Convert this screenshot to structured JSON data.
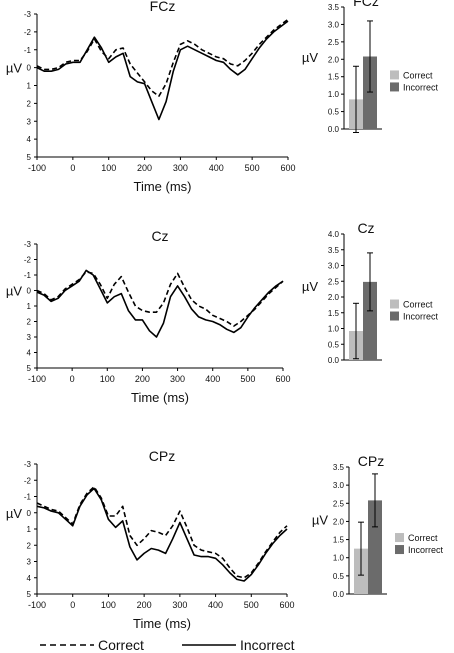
{
  "legend": {
    "correct": "Correct",
    "incorrect": "Incorrect"
  },
  "colors": {
    "correct_bar": "#bdbdbd",
    "incorrect_bar": "#6b6b6b",
    "line": "#000000"
  },
  "chart_data": [
    {
      "type": "line",
      "title": "FCz",
      "xlabel": "Time (ms)",
      "ylabel": "µV",
      "xlim": [
        -100,
        600
      ],
      "ylim": [
        -3,
        5
      ],
      "y_inverted": true,
      "x_ticks": [
        -100,
        0,
        100,
        200,
        300,
        400,
        500,
        600
      ],
      "y_ticks": [
        -3,
        -2,
        -1,
        0,
        1,
        2,
        3,
        4,
        5
      ],
      "x": [
        -100,
        -80,
        -60,
        -40,
        -20,
        0,
        20,
        40,
        60,
        80,
        100,
        120,
        140,
        160,
        180,
        200,
        220,
        240,
        260,
        280,
        300,
        320,
        340,
        360,
        380,
        400,
        420,
        440,
        460,
        480,
        500,
        520,
        540,
        560,
        580,
        600
      ],
      "series": [
        {
          "name": "Correct",
          "style": "dashed",
          "values": [
            -0.1,
            0.1,
            0.1,
            0.0,
            -0.3,
            -0.4,
            -0.4,
            -0.9,
            -1.6,
            -0.9,
            -0.5,
            -1.0,
            -1.1,
            -0.2,
            0.3,
            0.8,
            1.3,
            1.6,
            0.9,
            -0.3,
            -1.3,
            -1.5,
            -1.3,
            -1.0,
            -0.8,
            -0.6,
            -0.5,
            -0.2,
            -0.1,
            -0.4,
            -0.8,
            -1.3,
            -1.7,
            -2.1,
            -2.4,
            -2.7
          ]
        },
        {
          "name": "Incorrect",
          "style": "solid",
          "values": [
            0.0,
            0.2,
            0.2,
            0.1,
            -0.2,
            -0.3,
            -0.3,
            -1.0,
            -1.7,
            -1.1,
            -0.3,
            -0.6,
            -0.8,
            0.5,
            0.8,
            0.9,
            1.9,
            2.9,
            1.9,
            0.2,
            -1.0,
            -1.2,
            -1.0,
            -0.8,
            -0.6,
            -0.4,
            -0.3,
            0.1,
            0.4,
            0.1,
            -0.5,
            -1.1,
            -1.6,
            -2.0,
            -2.3,
            -2.6
          ]
        }
      ]
    },
    {
      "type": "bar",
      "title": "FCz",
      "ylabel": "µV",
      "ylim": [
        0,
        3.5
      ],
      "y_ticks": [
        "0.0",
        "0.5",
        "1.0",
        "1.5",
        "2.0",
        "2.5",
        "3.0",
        "3.5"
      ],
      "categories": [
        "Correct",
        "Incorrect"
      ],
      "values": [
        0.85,
        2.08
      ],
      "error": [
        0.95,
        1.02
      ]
    },
    {
      "type": "line",
      "title": "Cz",
      "xlabel": "Time (ms)",
      "ylabel": "µV",
      "xlim": [
        -100,
        600
      ],
      "ylim": [
        -3,
        5
      ],
      "y_inverted": true,
      "x_ticks": [
        -100,
        0,
        100,
        200,
        300,
        400,
        500,
        600
      ],
      "y_ticks": [
        -3,
        -2,
        -1,
        0,
        1,
        2,
        3,
        4,
        5
      ],
      "x": [
        -100,
        -80,
        -60,
        -40,
        -20,
        0,
        20,
        40,
        60,
        80,
        100,
        120,
        140,
        160,
        180,
        200,
        220,
        240,
        260,
        280,
        300,
        320,
        340,
        360,
        380,
        400,
        420,
        440,
        460,
        480,
        500,
        520,
        540,
        560,
        580,
        600
      ],
      "series": [
        {
          "name": "Correct",
          "style": "dashed",
          "values": [
            0.0,
            0.2,
            0.6,
            0.4,
            -0.1,
            -0.4,
            -0.7,
            -1.2,
            -1.1,
            -0.4,
            0.5,
            -0.4,
            -0.9,
            0.1,
            1.0,
            1.3,
            1.4,
            1.4,
            0.8,
            -0.4,
            -1.1,
            -0.2,
            0.6,
            1.0,
            1.2,
            1.6,
            1.8,
            2.0,
            2.3,
            2.0,
            1.6,
            1.2,
            0.7,
            0.2,
            -0.2,
            -0.6
          ]
        },
        {
          "name": "Incorrect",
          "style": "solid",
          "values": [
            0.1,
            0.3,
            0.7,
            0.5,
            0.0,
            -0.3,
            -0.6,
            -1.3,
            -1.0,
            -0.1,
            0.8,
            0.4,
            0.2,
            1.3,
            1.9,
            1.9,
            2.6,
            3.0,
            2.1,
            0.4,
            -0.3,
            0.4,
            1.2,
            1.7,
            1.9,
            2.0,
            2.2,
            2.5,
            2.7,
            2.4,
            1.7,
            1.1,
            0.6,
            0.1,
            -0.3,
            -0.6
          ]
        }
      ]
    },
    {
      "type": "bar",
      "title": "Cz",
      "ylabel": "µV",
      "ylim": [
        0,
        4.0
      ],
      "y_ticks": [
        "0.0",
        "0.5",
        "1.0",
        "1.5",
        "2.0",
        "2.5",
        "3.0",
        "3.5",
        "4.0"
      ],
      "categories": [
        "Correct",
        "Incorrect"
      ],
      "values": [
        0.92,
        2.48
      ],
      "error": [
        0.88,
        0.92
      ]
    },
    {
      "type": "line",
      "title": "CPz",
      "xlabel": "Time (ms)",
      "ylabel": "µV",
      "xlim": [
        -100,
        600
      ],
      "ylim": [
        -3,
        5
      ],
      "y_inverted": true,
      "x_ticks": [
        -100,
        0,
        100,
        200,
        300,
        400,
        500,
        600
      ],
      "y_ticks": [
        -3,
        -2,
        -1,
        0,
        1,
        2,
        3,
        4,
        5
      ],
      "x": [
        -100,
        -80,
        -60,
        -40,
        -20,
        0,
        20,
        40,
        60,
        80,
        100,
        120,
        140,
        160,
        180,
        200,
        220,
        240,
        260,
        280,
        300,
        320,
        340,
        360,
        380,
        400,
        420,
        440,
        460,
        480,
        500,
        520,
        540,
        560,
        580,
        600
      ],
      "series": [
        {
          "name": "Correct",
          "style": "dashed",
          "values": [
            -0.6,
            -0.4,
            -0.2,
            -0.1,
            0.3,
            0.7,
            -0.5,
            -1.2,
            -1.6,
            -0.9,
            0.2,
            0.2,
            -0.4,
            1.4,
            2.0,
            1.6,
            1.1,
            1.2,
            1.4,
            0.8,
            -0.1,
            0.9,
            2.0,
            2.3,
            2.4,
            2.5,
            2.8,
            3.4,
            3.9,
            4.0,
            3.7,
            3.1,
            2.4,
            1.8,
            1.2,
            0.8
          ]
        },
        {
          "name": "Incorrect",
          "style": "solid",
          "values": [
            -0.4,
            -0.3,
            -0.1,
            0.0,
            0.4,
            0.8,
            -0.4,
            -1.1,
            -1.5,
            -0.8,
            0.4,
            0.9,
            0.5,
            2.1,
            2.9,
            2.5,
            2.2,
            2.3,
            2.5,
            1.6,
            0.6,
            1.6,
            2.6,
            2.7,
            2.7,
            2.8,
            3.2,
            3.7,
            4.1,
            4.2,
            3.8,
            3.2,
            2.5,
            1.9,
            1.4,
            1.0
          ]
        }
      ]
    },
    {
      "type": "bar",
      "title": "CPz",
      "ylabel": "µV",
      "ylim": [
        0,
        3.5
      ],
      "y_ticks": [
        "0.0",
        "0.5",
        "1.0",
        "1.5",
        "2.0",
        "2.5",
        "3.0",
        "3.5"
      ],
      "categories": [
        "Correct",
        "Incorrect"
      ],
      "values": [
        1.25,
        2.58
      ],
      "error": [
        0.73,
        0.73
      ]
    }
  ]
}
